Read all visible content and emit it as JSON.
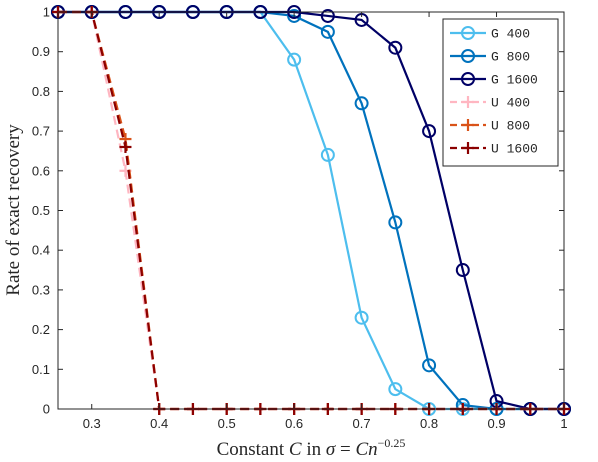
{
  "chart_data": {
    "type": "line",
    "title": "",
    "xlabel": "Constant C in σ = Cn^−0.25",
    "xlabel_parts": {
      "prefix": "Constant ",
      "var_c": "C",
      "mid": " in ",
      "sigma": "σ",
      "eq": " = ",
      "var_cn": "Cn",
      "exponent": "−0.25"
    },
    "ylabel": "Rate of exact recovery",
    "xlim": [
      0.25,
      1.0
    ],
    "ylim": [
      0,
      1
    ],
    "xticks": [
      "0.3",
      "0.4",
      "0.5",
      "0.6",
      "0.7",
      "0.8",
      "0.9",
      "1"
    ],
    "xtick_values": [
      0.3,
      0.4,
      0.5,
      0.6,
      0.7,
      0.8,
      0.9,
      1.0
    ],
    "yticks": [
      "0",
      "0.1",
      "0.2",
      "0.3",
      "0.4",
      "0.5",
      "0.6",
      "0.7",
      "0.8",
      "0.9",
      "1"
    ],
    "ytick_values": [
      0,
      0.1,
      0.2,
      0.3,
      0.4,
      0.5,
      0.6,
      0.7,
      0.8,
      0.9,
      1.0
    ],
    "grid": false,
    "legend_position": "top-right",
    "x": [
      0.25,
      0.3,
      0.35,
      0.4,
      0.45,
      0.5,
      0.55,
      0.6,
      0.65,
      0.7,
      0.75,
      0.8,
      0.85,
      0.9,
      0.95,
      1.0
    ],
    "series": [
      {
        "name": "G 400",
        "color": "#4dbeee",
        "marker": "circle",
        "dash": "solid",
        "values": [
          1,
          1,
          1,
          1,
          1,
          1,
          1,
          0.88,
          0.64,
          0.23,
          0.05,
          0,
          0,
          0,
          0,
          0
        ]
      },
      {
        "name": "G 800",
        "color": "#0072bd",
        "marker": "circle",
        "dash": "solid",
        "values": [
          1,
          1,
          1,
          1,
          1,
          1,
          1,
          0.99,
          0.95,
          0.77,
          0.47,
          0.11,
          0.01,
          0,
          0,
          0
        ]
      },
      {
        "name": "G 1600",
        "color": "#000066",
        "marker": "circle",
        "dash": "solid",
        "values": [
          1,
          1,
          1,
          1,
          1,
          1,
          1,
          1,
          0.99,
          0.98,
          0.91,
          0.7,
          0.35,
          0.02,
          0,
          0
        ]
      },
      {
        "name": "U 400",
        "color": "#ffb6c1",
        "marker": "plus",
        "dash": "dashed",
        "values": [
          1,
          1,
          0.6,
          0,
          0,
          0,
          0,
          0,
          0,
          0,
          0,
          0,
          0,
          0,
          0,
          0
        ]
      },
      {
        "name": "U 800",
        "color": "#d95319",
        "marker": "plus",
        "dash": "dashed",
        "values": [
          1,
          1,
          0.68,
          0,
          0,
          0,
          0,
          0,
          0,
          0,
          0,
          0,
          0,
          0,
          0,
          0
        ]
      },
      {
        "name": "U 1600",
        "color": "#8b0000",
        "marker": "plus",
        "dash": "dashed",
        "values": [
          1,
          1,
          0.66,
          0,
          0,
          0,
          0,
          0,
          0,
          0,
          0,
          0,
          0,
          0,
          0,
          0
        ]
      }
    ]
  }
}
